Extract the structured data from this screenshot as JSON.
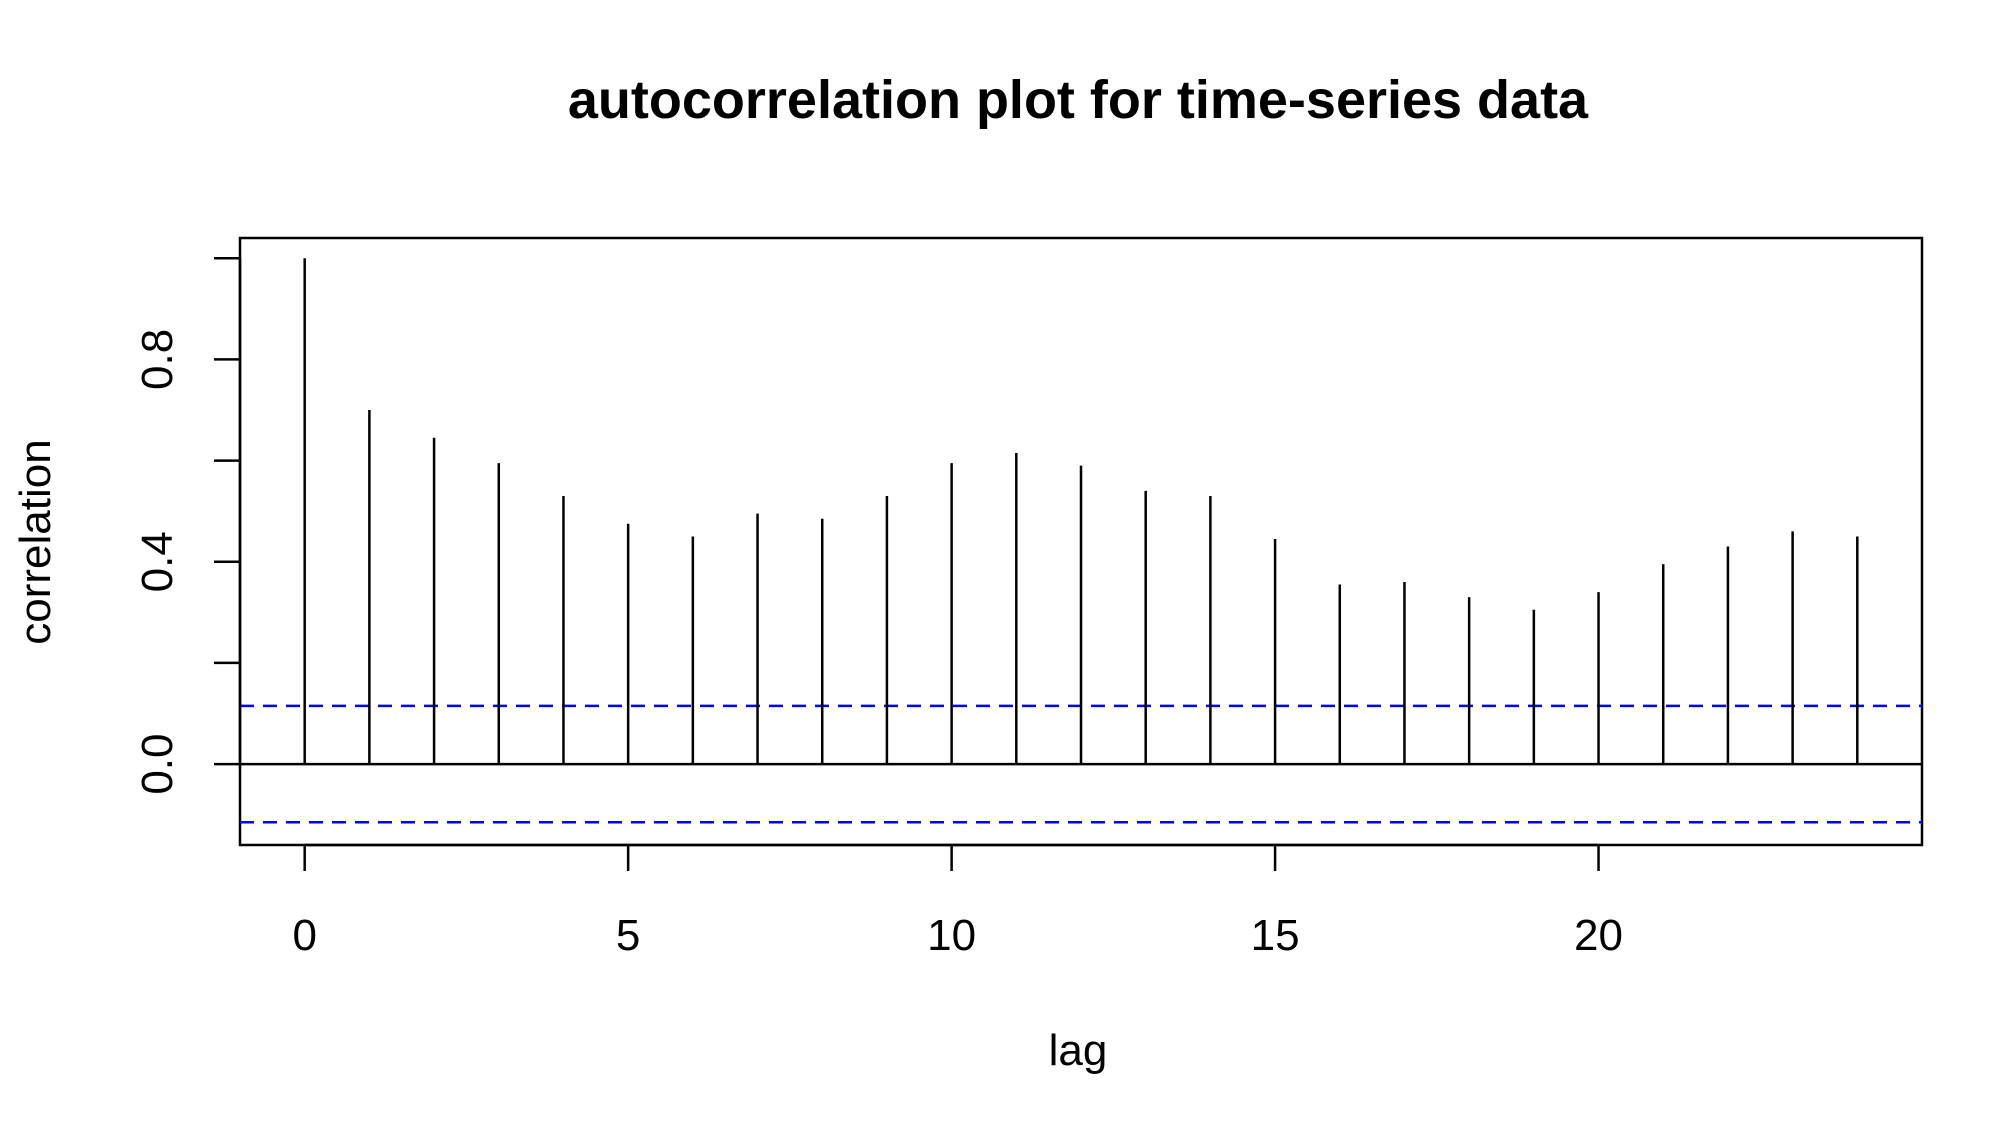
{
  "chart_data": {
    "type": "bar",
    "title": "autocorrelation plot for time-series data",
    "xlabel": "lag",
    "ylabel": "correlation",
    "x": [
      0,
      1,
      2,
      3,
      4,
      5,
      6,
      7,
      8,
      9,
      10,
      11,
      12,
      13,
      14,
      15,
      16,
      17,
      18,
      19,
      20,
      21,
      22,
      23,
      24
    ],
    "values": [
      1.0,
      0.7,
      0.645,
      0.595,
      0.53,
      0.475,
      0.45,
      0.495,
      0.485,
      0.53,
      0.595,
      0.615,
      0.59,
      0.54,
      0.53,
      0.445,
      0.355,
      0.36,
      0.33,
      0.305,
      0.34,
      0.395,
      0.43,
      0.46,
      0.45
    ],
    "confidence_bound": 0.115,
    "xlim": [
      -1,
      25
    ],
    "ylim": [
      -0.16,
      1.04
    ],
    "xticks": [
      0,
      5,
      10,
      15,
      20
    ],
    "xtick_labels": [
      "0",
      "5",
      "10",
      "15",
      "20"
    ],
    "yticks": [
      0,
      0.2,
      0.4,
      0.6,
      0.8,
      1.0
    ],
    "ytick_labels": [
      "0.0",
      "",
      "0.4",
      "",
      "0.8",
      ""
    ],
    "grid": false,
    "colors": {
      "bars": "#000000",
      "confidence_lines": "#0000ff"
    }
  }
}
